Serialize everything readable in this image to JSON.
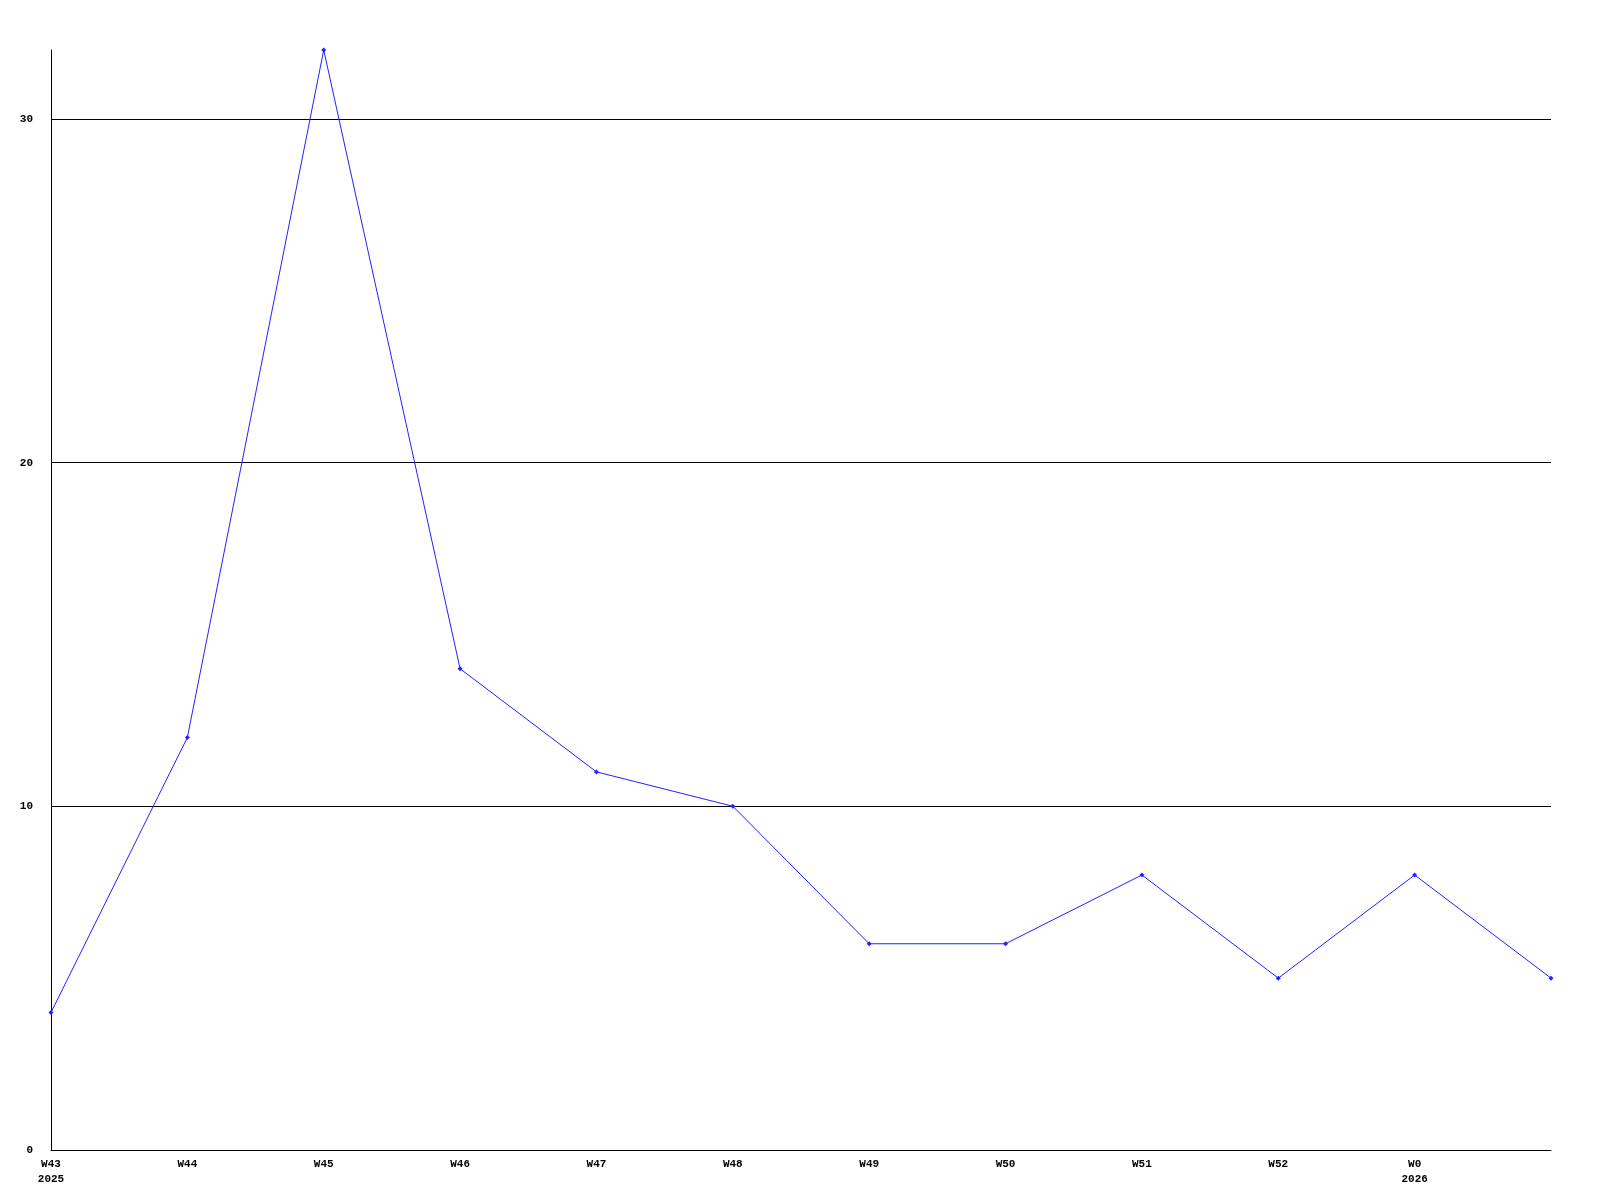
{
  "chart_data": {
    "type": "line",
    "categories": [
      "W43\n2025",
      "W44",
      "W45",
      "W46",
      "W47",
      "W48",
      "W49",
      "W50",
      "W51",
      "W52",
      "W0\n2026",
      null
    ],
    "series": [
      {
        "color": "#2222ff",
        "values": [
          4,
          12,
          32,
          14,
          11,
          10,
          6,
          6,
          8,
          5,
          8,
          5
        ]
      }
    ],
    "ylim": [
      0,
      32
    ],
    "yticks": [
      0,
      10,
      20,
      30
    ],
    "grid": "y",
    "marker": "diamond",
    "line_style": "solid"
  }
}
